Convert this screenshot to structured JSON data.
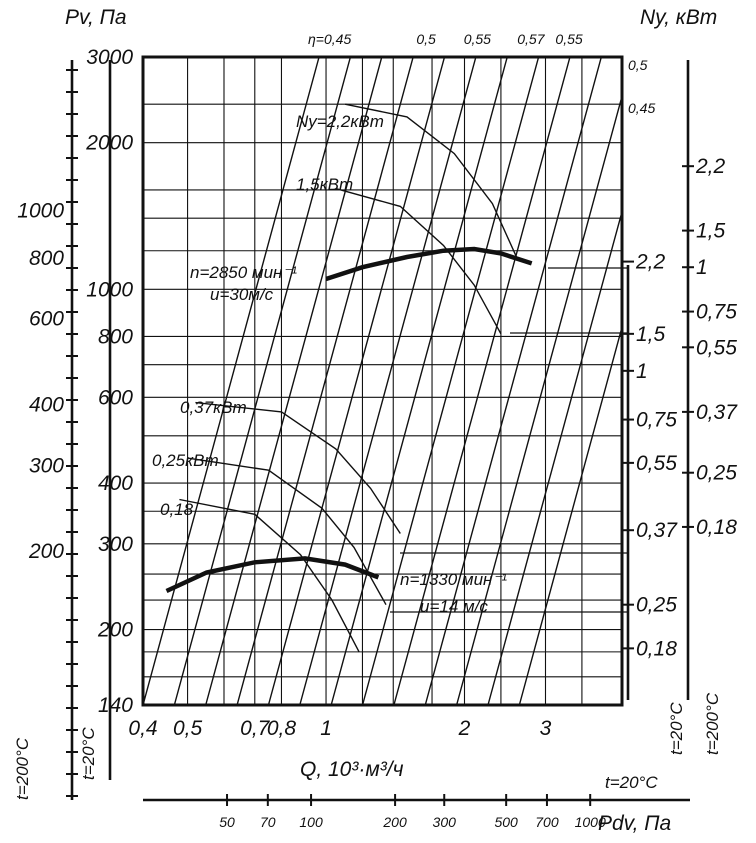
{
  "chart_data": {
    "type": "line",
    "xlabel": "Q, 10³·м³/ч",
    "ylabel_left": "Pv, Па",
    "ylabel_right": "Ny, кВт",
    "bottom_scale_label": "Pdv, Па",
    "x_scale": "log",
    "y_scale": "log",
    "xlim": [
      0.4,
      4.4
    ],
    "ylim": [
      140,
      3000
    ],
    "x_ticks": [
      {
        "v": 0.4,
        "label": "0,4"
      },
      {
        "v": 0.5,
        "label": "0,5"
      },
      {
        "v": 0.6,
        "label": ""
      },
      {
        "v": 0.7,
        "label": "0,7"
      },
      {
        "v": 0.8,
        "label": "0,8"
      },
      {
        "v": 1.0,
        "label": "1"
      },
      {
        "v": 1.2,
        "label": ""
      },
      {
        "v": 1.4,
        "label": ""
      },
      {
        "v": 1.7,
        "label": ""
      },
      {
        "v": 2.0,
        "label": "2"
      },
      {
        "v": 2.4,
        "label": ""
      },
      {
        "v": 3.0,
        "label": "3"
      },
      {
        "v": 3.6,
        "label": ""
      },
      {
        "v": 4.4,
        "label": ""
      }
    ],
    "y_ticks": [
      {
        "v": 140,
        "label": "140"
      },
      {
        "v": 160,
        "label": ""
      },
      {
        "v": 180,
        "label": ""
      },
      {
        "v": 200,
        "label": "200"
      },
      {
        "v": 230,
        "label": ""
      },
      {
        "v": 260,
        "label": ""
      },
      {
        "v": 300,
        "label": "300"
      },
      {
        "v": 350,
        "label": ""
      },
      {
        "v": 400,
        "label": "400"
      },
      {
        "v": 500,
        "label": ""
      },
      {
        "v": 600,
        "label": "600"
      },
      {
        "v": 700,
        "label": ""
      },
      {
        "v": 800,
        "label": "800"
      },
      {
        "v": 1000,
        "label": "1000"
      },
      {
        "v": 1200,
        "label": ""
      },
      {
        "v": 1400,
        "label": ""
      },
      {
        "v": 1600,
        "label": ""
      },
      {
        "v": 2000,
        "label": "2000"
      },
      {
        "v": 2400,
        "label": ""
      },
      {
        "v": 3000,
        "label": "3000"
      }
    ],
    "left_t200_scale": {
      "title": "t=200°C",
      "ticks": [
        {
          "v": 1000,
          "label": "1000"
        },
        {
          "v": 800,
          "label": "800"
        },
        {
          "v": 600,
          "label": "600"
        },
        {
          "v": 400,
          "label": "400"
        },
        {
          "v": 300,
          "label": "300"
        },
        {
          "v": 200,
          "label": "200"
        }
      ]
    },
    "left_t20_title": "t=20°C",
    "right_t20_scale": {
      "title": "t=20°C",
      "ticks": [
        {
          "label": "2,2",
          "pv": 1140
        },
        {
          "label": "1,5",
          "pv": 810
        },
        {
          "label": "1",
          "pv": 680
        },
        {
          "label": "0,75",
          "pv": 540
        },
        {
          "label": "0,55",
          "pv": 440
        },
        {
          "label": "0,37",
          "pv": 320
        },
        {
          "label": "0,25",
          "pv": 225
        },
        {
          "label": "0,18",
          "pv": 183
        }
      ]
    },
    "right_t200_scale": {
      "title": "t=200°C",
      "ticks": [
        {
          "label": "2,2",
          "pv": 1790
        },
        {
          "label": "1,5",
          "pv": 1320
        },
        {
          "label": "1",
          "pv": 1110
        },
        {
          "label": "0,75",
          "pv": 900
        },
        {
          "label": "0,55",
          "pv": 760
        },
        {
          "label": "0,37",
          "pv": 560
        },
        {
          "label": "0,25",
          "pv": 420
        },
        {
          "label": "0,18",
          "pv": 325
        }
      ]
    },
    "bottom_pdv_scale": {
      "title": "t=20°C",
      "ticks": [
        {
          "v": 50,
          "label": "50"
        },
        {
          "v": 70,
          "label": "70"
        },
        {
          "v": 100,
          "label": "100"
        },
        {
          "v": 200,
          "label": "200"
        },
        {
          "v": 300,
          "label": "300"
        },
        {
          "v": 500,
          "label": "500"
        },
        {
          "v": 700,
          "label": "700"
        },
        {
          "v": 1000,
          "label": "1000"
        }
      ]
    },
    "series": [
      {
        "name": "n=2850 мин⁻¹",
        "speed_label": "u=30м/с",
        "x": [
          1.0,
          1.2,
          1.5,
          1.8,
          2.1,
          2.4,
          2.8
        ],
        "y": [
          1050,
          1110,
          1165,
          1200,
          1210,
          1185,
          1130
        ]
      },
      {
        "name": "n=1330 мин⁻¹",
        "speed_label": "u=14 м/с",
        "x": [
          0.45,
          0.55,
          0.7,
          0.9,
          1.1,
          1.3
        ],
        "y": [
          240,
          262,
          275,
          280,
          272,
          256
        ]
      }
    ],
    "power_curves": [
      {
        "label": "Ny=2,2кВт",
        "x": [
          1.1,
          1.5,
          1.9,
          2.3,
          2.6
        ],
        "y": [
          2400,
          2260,
          1900,
          1500,
          1160
        ]
      },
      {
        "label": "1,5кВт",
        "x": [
          1.05,
          1.45,
          1.8,
          2.1,
          2.4
        ],
        "y": [
          1610,
          1480,
          1230,
          1020,
          810
        ]
      },
      {
        "label": "0,37кВт",
        "x": [
          0.52,
          0.8,
          1.05,
          1.25,
          1.45
        ],
        "y": [
          585,
          560,
          470,
          390,
          315
        ]
      },
      {
        "label": "0,25кВт",
        "x": [
          0.5,
          0.75,
          0.98,
          1.15,
          1.35
        ],
        "y": [
          450,
          425,
          355,
          295,
          225
        ]
      },
      {
        "label": "0,18",
        "x": [
          0.48,
          0.7,
          0.88,
          1.03,
          1.18
        ],
        "y": [
          370,
          345,
          285,
          230,
          180
        ]
      }
    ],
    "efficiency_lines": {
      "top_labels": [
        {
          "text": "η=0,45",
          "x": 1.0
        },
        {
          "text": "0,5",
          "x": 1.72
        },
        {
          "text": "0,55",
          "x": 2.18
        },
        {
          "text": "0,57",
          "x": 2.85
        },
        {
          "text": "0,55",
          "x": 3.45
        }
      ],
      "side_labels": [
        "0,5",
        "0,45"
      ],
      "count": 13
    }
  }
}
